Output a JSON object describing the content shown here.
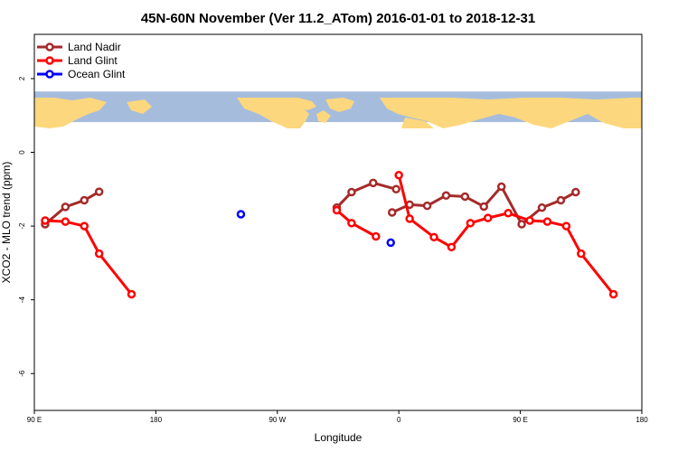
{
  "chart_data": {
    "type": "line",
    "title": "45N-60N November (Ver 11.2_ATom)   2016-01-01 to 2018-12-31",
    "xlabel": "Longitude",
    "ylabel": "XCO2 - MLO trend (ppm)",
    "xlim": [
      90,
      480
    ],
    "ylim": [
      -7,
      3.2
    ],
    "x_ticks": [
      {
        "value": 90,
        "label": "90 E"
      },
      {
        "value": 180,
        "label": "180"
      },
      {
        "value": 270,
        "label": "90 W"
      },
      {
        "value": 360,
        "label": "0"
      },
      {
        "value": 450,
        "label": "90 E"
      },
      {
        "value": 540,
        "label": "180"
      }
    ],
    "y_ticks": [
      {
        "value": 2,
        "label": "2"
      },
      {
        "value": 0,
        "label": "0"
      },
      {
        "value": -2,
        "label": "-2"
      },
      {
        "value": -4,
        "label": "-4"
      },
      {
        "value": -6,
        "label": "-6"
      }
    ],
    "map_strip": {
      "y_top": 1.65,
      "y_bottom": 0.82,
      "ocean_color": "#a5bcdd",
      "land_color": "#fdd77d"
    },
    "legend_position": "top-left",
    "series": [
      {
        "name": "Land Nadir",
        "color": "#a52a2a",
        "segments": [
          [
            [
              98,
              -1.95
            ],
            [
              113,
              -1.48
            ],
            [
              127,
              -1.3
            ],
            [
              138,
              -1.07
            ]
          ],
          [
            [
              314,
              -1.5
            ],
            [
              325,
              -1.08
            ],
            [
              341,
              -0.83
            ],
            [
              358,
              -1.0
            ]
          ],
          [
            [
              355,
              -1.63
            ],
            [
              368,
              -1.42
            ],
            [
              381,
              -1.45
            ],
            [
              395,
              -1.17
            ],
            [
              409,
              -1.2
            ],
            [
              423,
              -1.47
            ],
            [
              436,
              -0.93
            ],
            [
              451,
              -1.95
            ],
            [
              466,
              -1.5
            ],
            [
              480,
              -1.3
            ],
            [
              491,
              -1.08
            ]
          ]
        ]
      },
      {
        "name": "Land Glint",
        "color": "#ff0000",
        "segments": [
          [
            [
              98,
              -1.85
            ],
            [
              113,
              -1.88
            ],
            [
              127,
              -2.0
            ],
            [
              138,
              -2.75
            ],
            [
              162,
              -3.85
            ]
          ],
          [
            [
              314,
              -1.57
            ],
            [
              325,
              -1.92
            ],
            [
              343,
              -2.28
            ]
          ],
          [
            [
              360,
              -0.62
            ],
            [
              368,
              -1.8
            ],
            [
              386,
              -2.3
            ],
            [
              399,
              -2.57
            ],
            [
              413,
              -1.92
            ],
            [
              426,
              -1.78
            ],
            [
              441,
              -1.65
            ],
            [
              457,
              -1.85
            ],
            [
              470,
              -1.88
            ],
            [
              484,
              -2.0
            ],
            [
              495,
              -2.75
            ],
            [
              519,
              -3.85
            ]
          ]
        ]
      },
      {
        "name": "Ocean Glint",
        "color": "#0000ff",
        "segments": [
          [
            [
              243,
              -1.68
            ]
          ],
          [
            [
              354,
              -2.45
            ]
          ]
        ]
      }
    ]
  }
}
